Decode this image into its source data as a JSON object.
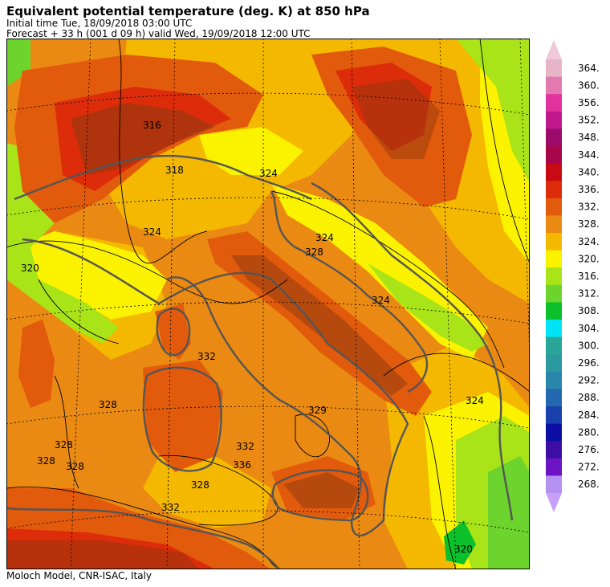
{
  "header": {
    "title": "Equivalent potential temperature (deg. K) at 850 hPa",
    "initial_time": "Initial time  Tue, 18/09/2018  03:00 UTC",
    "forecast": "Forecast  +  33 h  (001 d 09 h)  valid Wed, 19/09/2018 12:00 UTC"
  },
  "footer": {
    "credit": "Moloch Model, CNR-ISAC, Italy"
  },
  "colorbar": {
    "levels": [
      {
        "value": "364.",
        "color": "#e8b4c8"
      },
      {
        "value": "360.",
        "color": "#e27ab0"
      },
      {
        "value": "356.",
        "color": "#e0339e"
      },
      {
        "value": "352.",
        "color": "#c0198c"
      },
      {
        "value": "348.",
        "color": "#9c0a6c"
      },
      {
        "value": "344.",
        "color": "#a8064a"
      },
      {
        "value": "340.",
        "color": "#c80a14"
      },
      {
        "value": "336.",
        "color": "#dc2c0a"
      },
      {
        "value": "332.",
        "color": "#e25a0c"
      },
      {
        "value": "328.",
        "color": "#ea8a12"
      },
      {
        "value": "324.",
        "color": "#f4b800"
      },
      {
        "value": "320.",
        "color": "#fbf200"
      },
      {
        "value": "316.",
        "color": "#a8e418"
      },
      {
        "value": "312.",
        "color": "#6cd42c"
      },
      {
        "value": "308.",
        "color": "#0cc02c"
      },
      {
        "value": "304.",
        "color": "#00e4f6"
      },
      {
        "value": "300.",
        "color": "#2aa698"
      },
      {
        "value": "296.",
        "color": "#2a9a9e"
      },
      {
        "value": "292.",
        "color": "#2a86aa"
      },
      {
        "value": "288.",
        "color": "#2466b0"
      },
      {
        "value": "284.",
        "color": "#1a40ac"
      },
      {
        "value": "280.",
        "color": "#0c0ea4"
      },
      {
        "value": "276.",
        "color": "#3c0ea4"
      },
      {
        "value": "272.",
        "color": "#6c14c4"
      },
      {
        "value": "268.",
        "color": "#b490f0"
      }
    ],
    "top_arrow_color": "#f0c8d8",
    "bottom_arrow_color": "#c8a0f8"
  },
  "map": {
    "contour_labels": [
      "316",
      "318",
      "324",
      "320",
      "324",
      "324",
      "328",
      "332",
      "328",
      "328",
      "328",
      "328",
      "329",
      "332",
      "328",
      "324",
      "320",
      "324",
      "336",
      "332"
    ],
    "palette": {
      "base": "#ea8a12",
      "lighter": "#f4b800",
      "yellow": "#fbf200",
      "lime": "#a8e418",
      "green": "#6cd42c",
      "darkgreen": "#0cc02c",
      "orange_dark": "#e25a0c",
      "red": "#dc2c0a",
      "brown": "#8a3a10",
      "coast": "#555555"
    }
  }
}
